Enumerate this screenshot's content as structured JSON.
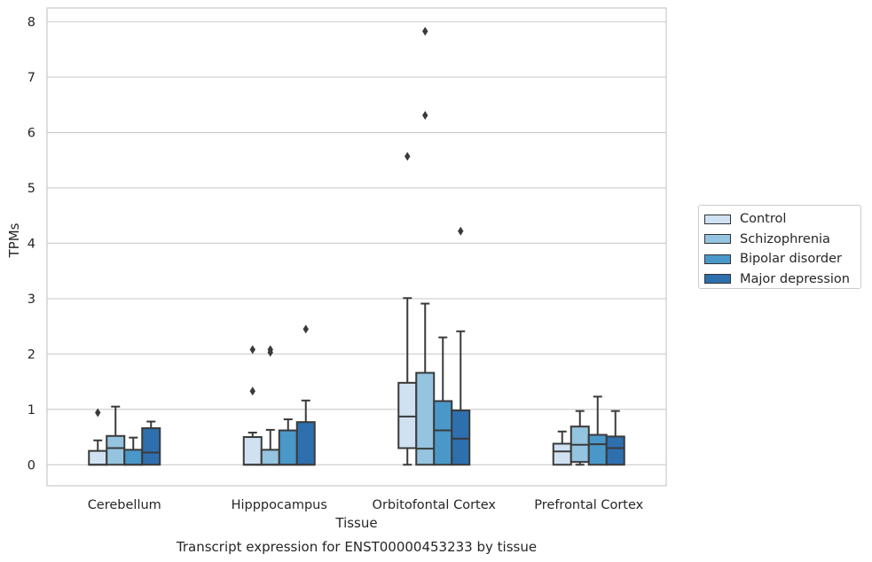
{
  "chart_data": {
    "type": "box",
    "title": "Transcript expression for ENST00000453233 by tissue",
    "xlabel": "Tissue",
    "ylabel": "TPMs",
    "ylim": [
      -0.38,
      8.25
    ],
    "yticks": [
      0,
      1,
      2,
      3,
      4,
      5,
      6,
      7,
      8
    ],
    "grid": true,
    "legend_position": "right",
    "categories": [
      "Cerebellum",
      "Hipppocampus",
      "Orbitofontal Cortex",
      "Prefrontal Cortex"
    ],
    "series": [
      {
        "name": "Control",
        "color": "#d0e1f2",
        "boxes": [
          {
            "whisker_low": 0.0,
            "q1": 0.0,
            "median": 0.0,
            "q3": 0.25,
            "whisker_high": 0.44,
            "outliers": [
              0.94
            ]
          },
          {
            "whisker_low": 0.0,
            "q1": 0.0,
            "median": 0.0,
            "q3": 0.5,
            "whisker_high": 0.58,
            "outliers": [
              2.08,
              1.33
            ]
          },
          {
            "whisker_low": 0.0,
            "q1": 0.3,
            "median": 0.87,
            "q3": 1.48,
            "whisker_high": 3.01,
            "outliers": [
              5.57
            ]
          },
          {
            "whisker_low": 0.0,
            "q1": 0.0,
            "median": 0.24,
            "q3": 0.38,
            "whisker_high": 0.6,
            "outliers": []
          }
        ]
      },
      {
        "name": "Schizophrenia",
        "color": "#94c4df",
        "boxes": [
          {
            "whisker_low": 0.0,
            "q1": 0.0,
            "median": 0.3,
            "q3": 0.52,
            "whisker_high": 1.05,
            "outliers": []
          },
          {
            "whisker_low": 0.0,
            "q1": 0.0,
            "median": 0.0,
            "q3": 0.27,
            "whisker_high": 0.63,
            "outliers": [
              2.08,
              2.03
            ]
          },
          {
            "whisker_low": 0.0,
            "q1": 0.0,
            "median": 0.29,
            "q3": 1.66,
            "whisker_high": 2.91,
            "outliers": [
              7.83,
              6.31
            ]
          },
          {
            "whisker_low": 0.0,
            "q1": 0.05,
            "median": 0.36,
            "q3": 0.69,
            "whisker_high": 0.97,
            "outliers": []
          }
        ]
      },
      {
        "name": "Bipolar disorder",
        "color": "#4a98c9",
        "boxes": [
          {
            "whisker_low": 0.0,
            "q1": 0.0,
            "median": 0.0,
            "q3": 0.27,
            "whisker_high": 0.49,
            "outliers": []
          },
          {
            "whisker_low": 0.0,
            "q1": 0.0,
            "median": 0.0,
            "q3": 0.62,
            "whisker_high": 0.82,
            "outliers": []
          },
          {
            "whisker_low": 0.0,
            "q1": 0.0,
            "median": 0.62,
            "q3": 1.15,
            "whisker_high": 2.3,
            "outliers": []
          },
          {
            "whisker_low": 0.0,
            "q1": 0.0,
            "median": 0.37,
            "q3": 0.54,
            "whisker_high": 1.23,
            "outliers": []
          }
        ]
      },
      {
        "name": "Major depression",
        "color": "#2e6fae",
        "boxes": [
          {
            "whisker_low": 0.0,
            "q1": 0.0,
            "median": 0.22,
            "q3": 0.66,
            "whisker_high": 0.78,
            "outliers": []
          },
          {
            "whisker_low": 0.0,
            "q1": 0.0,
            "median": 0.0,
            "q3": 0.77,
            "whisker_high": 1.16,
            "outliers": [
              2.45
            ]
          },
          {
            "whisker_low": 0.0,
            "q1": 0.0,
            "median": 0.47,
            "q3": 0.98,
            "whisker_high": 2.41,
            "outliers": [
              4.22
            ]
          },
          {
            "whisker_low": 0.0,
            "q1": 0.0,
            "median": 0.3,
            "q3": 0.51,
            "whisker_high": 0.97,
            "outliers": []
          }
        ]
      }
    ]
  }
}
